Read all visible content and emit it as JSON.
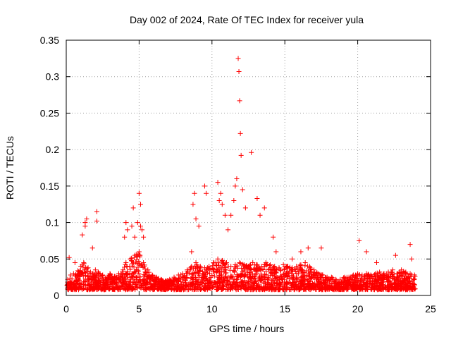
{
  "chart_data": {
    "type": "scatter",
    "title": "Day 002 of 2024, Rate Of TEC Index for receiver yula",
    "xlabel": "GPS time / hours",
    "ylabel": "ROTI / TECUs",
    "xlim": [
      0,
      25
    ],
    "ylim": [
      0,
      0.35
    ],
    "xticks": [
      0,
      5,
      10,
      15,
      20,
      25
    ],
    "yticks": [
      0,
      0.05,
      0.1,
      0.15,
      0.2,
      0.25,
      0.3,
      0.35
    ],
    "xtick_labels": [
      "0",
      "5",
      "10",
      "15",
      "20",
      "25"
    ],
    "ytick_labels": [
      "0",
      "0.05",
      "0.1",
      "0.15",
      "0.2",
      "0.25",
      "0.3",
      "0.35"
    ],
    "grid": true,
    "marker": "+",
    "color": "#ff0000",
    "series": [
      {
        "x": [
          0.1,
          0.3,
          0.5,
          0.8,
          1.0,
          1.2,
          1.5,
          1.8,
          2.0,
          2.2,
          2.5,
          2.8,
          3.0,
          3.3,
          3.6,
          3.9,
          4.1,
          4.4,
          4.7,
          5.0,
          5.3,
          5.6,
          5.9,
          6.2,
          6.5,
          6.8,
          7.1,
          7.4,
          7.7,
          8.0,
          8.3,
          8.6,
          8.9,
          9.2,
          9.5,
          9.8,
          10.1,
          10.4,
          10.7,
          11.0,
          11.3,
          11.6,
          11.9,
          12.2,
          12.5,
          12.8,
          13.1,
          13.4,
          13.7,
          14.0,
          14.3,
          14.6,
          14.9,
          15.2,
          15.5,
          15.8,
          16.1,
          16.4,
          16.7,
          17.0,
          17.3,
          17.6,
          17.9,
          18.2,
          18.5,
          18.8,
          19.1,
          19.4,
          19.7,
          20.0,
          20.3,
          20.6,
          20.9,
          21.2,
          21.5,
          21.8,
          22.1,
          22.4,
          22.7,
          23.0,
          23.3,
          23.6,
          23.9,
          0.2,
          0.6,
          1.1,
          1.3,
          1.4,
          1.3,
          1.8,
          2.1,
          2.1,
          4.0,
          4.1,
          4.2,
          4.5,
          4.6,
          4.7,
          4.9,
          5.0,
          5.1,
          5.1,
          5.2,
          5.3,
          8.6,
          8.7,
          8.8,
          8.9,
          9.1,
          9.5,
          9.6,
          10.4,
          10.5,
          10.6,
          10.7,
          10.9,
          11.1,
          11.3,
          11.5,
          11.6,
          11.7,
          11.8,
          11.85,
          11.9,
          11.95,
          12.0,
          12.1,
          12.3,
          12.7,
          13.1,
          13.3,
          13.6,
          14.2,
          14.4,
          15.5,
          16.1,
          16.6,
          17.5,
          20.1,
          20.6,
          21.3,
          22.6,
          23.6,
          23.7,
          0.9,
          1.6,
          2.6,
          3.4,
          4.3,
          5.5,
          6.3,
          7.0,
          7.6,
          8.2,
          9.0,
          9.7,
          10.2,
          10.8,
          11.4,
          12.4,
          13.0,
          13.8,
          14.5,
          15.1,
          15.7,
          16.3,
          16.9,
          17.4,
          18.0,
          18.7,
          19.3,
          19.9,
          20.4,
          21.0,
          21.7,
          22.3,
          22.9,
          23.4,
          23.8
        ],
        "y": [
          0.022,
          0.028,
          0.03,
          0.034,
          0.04,
          0.045,
          0.038,
          0.03,
          0.035,
          0.032,
          0.028,
          0.025,
          0.03,
          0.026,
          0.03,
          0.035,
          0.045,
          0.05,
          0.055,
          0.06,
          0.045,
          0.035,
          0.028,
          0.025,
          0.022,
          0.02,
          0.022,
          0.025,
          0.028,
          0.03,
          0.035,
          0.04,
          0.045,
          0.04,
          0.038,
          0.04,
          0.045,
          0.05,
          0.048,
          0.045,
          0.04,
          0.042,
          0.045,
          0.042,
          0.04,
          0.045,
          0.042,
          0.04,
          0.045,
          0.042,
          0.04,
          0.038,
          0.042,
          0.04,
          0.038,
          0.04,
          0.042,
          0.045,
          0.04,
          0.035,
          0.03,
          0.028,
          0.025,
          0.025,
          0.022,
          0.022,
          0.025,
          0.025,
          0.028,
          0.03,
          0.028,
          0.03,
          0.028,
          0.03,
          0.032,
          0.03,
          0.032,
          0.035,
          0.03,
          0.035,
          0.032,
          0.03,
          0.028,
          0.052,
          0.045,
          0.083,
          0.1,
          0.105,
          0.095,
          0.065,
          0.102,
          0.115,
          0.08,
          0.1,
          0.09,
          0.095,
          0.12,
          0.08,
          0.1,
          0.14,
          0.125,
          0.095,
          0.09,
          0.08,
          0.06,
          0.125,
          0.14,
          0.105,
          0.095,
          0.15,
          0.14,
          0.155,
          0.13,
          0.14,
          0.125,
          0.11,
          0.09,
          0.11,
          0.13,
          0.15,
          0.16,
          0.325,
          0.307,
          0.267,
          0.222,
          0.192,
          0.145,
          0.12,
          0.196,
          0.133,
          0.11,
          0.12,
          0.08,
          0.06,
          0.05,
          0.06,
          0.065,
          0.065,
          0.075,
          0.06,
          0.045,
          0.055,
          0.07,
          0.05,
          0.012,
          0.015,
          0.014,
          0.016,
          0.015,
          0.018,
          0.016,
          0.012,
          0.013,
          0.014,
          0.015,
          0.016,
          0.018,
          0.02,
          0.016,
          0.018,
          0.02,
          0.015,
          0.017,
          0.016,
          0.018,
          0.015,
          0.016,
          0.014,
          0.013,
          0.015,
          0.016,
          0.014,
          0.015,
          0.016,
          0.014,
          0.015,
          0.013,
          0.014,
          0.012
        ]
      }
    ]
  }
}
